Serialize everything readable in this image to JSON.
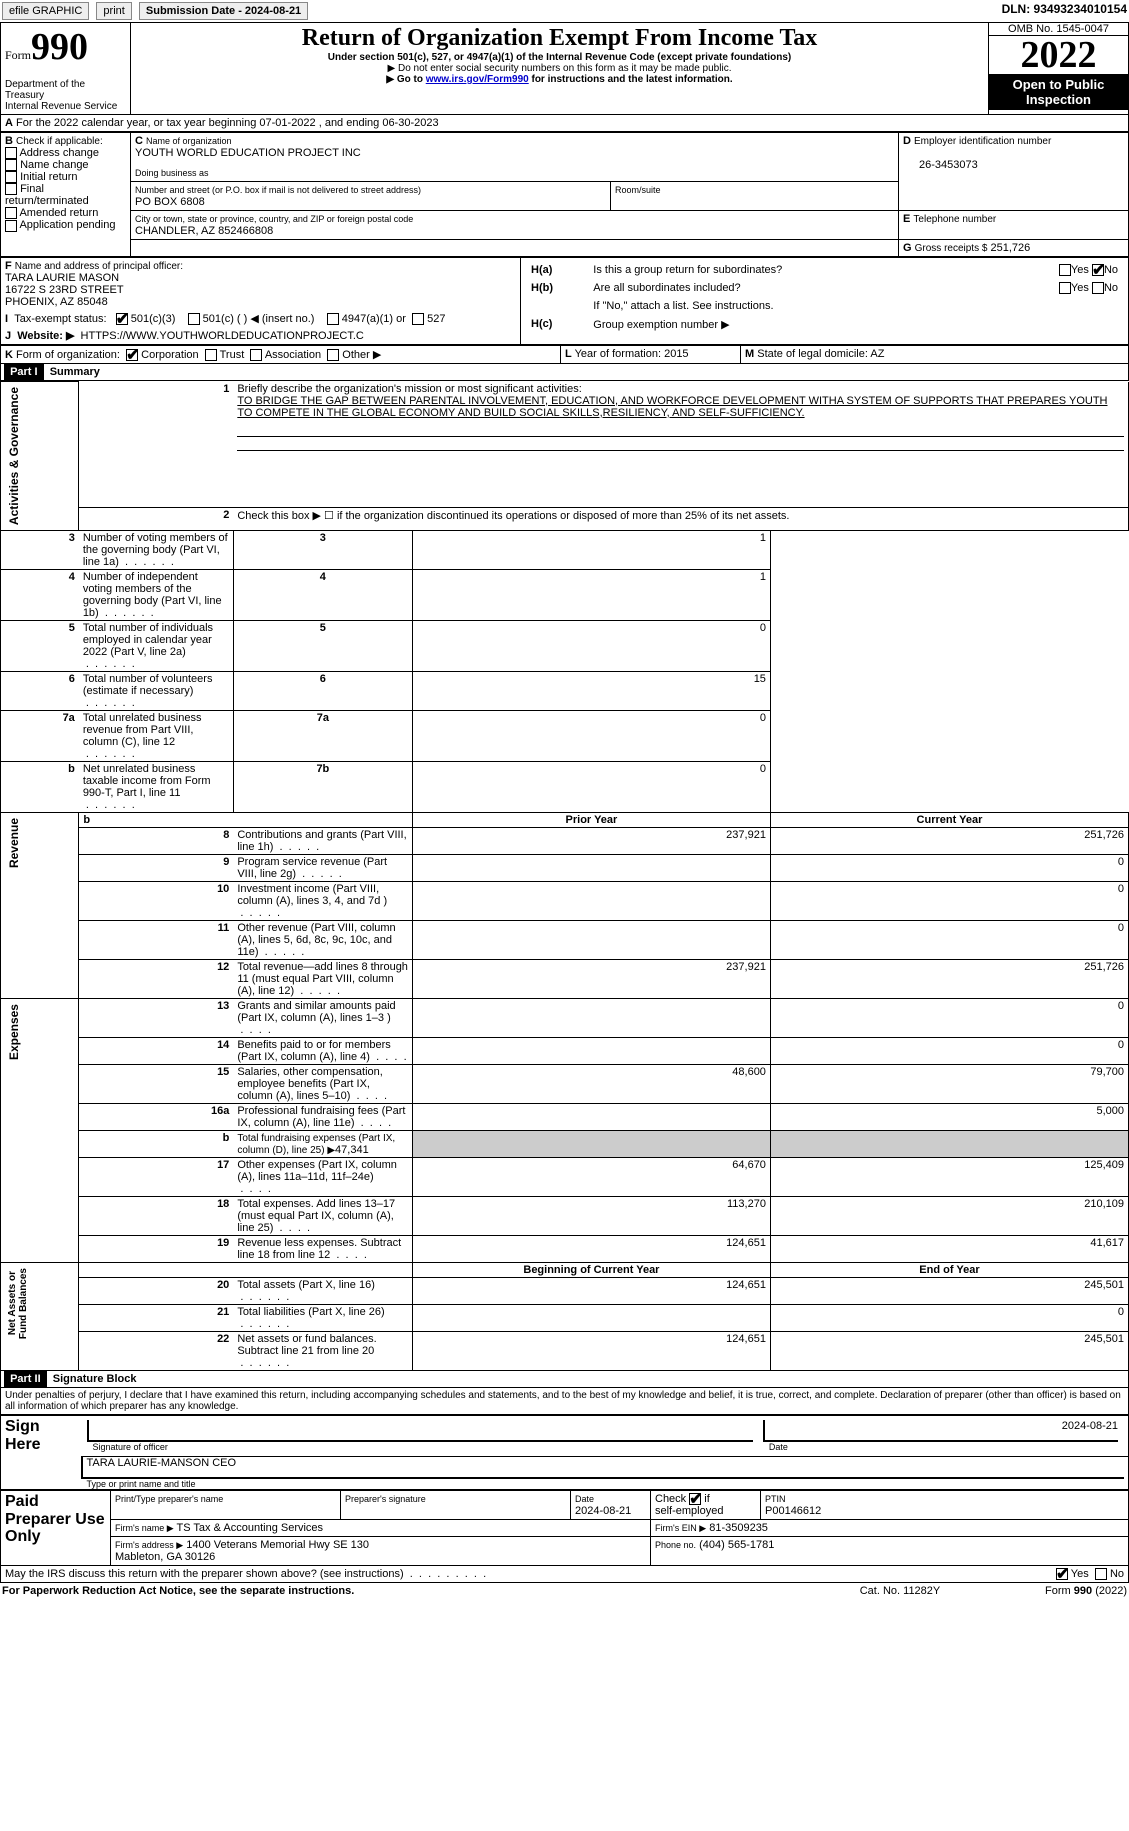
{
  "topbar": {
    "efile": "efile GRAPHIC",
    "print": "print",
    "subdate_label": "Submission Date - 2024-08-21",
    "dln": "DLN: 93493234010154"
  },
  "header": {
    "form_word": "Form",
    "form_num": "990",
    "title": "Return of Organization Exempt From Income Tax",
    "subtitle": "Under section 501(c), 527, or 4947(a)(1) of the Internal Revenue Code (except private foundations)",
    "note1": "▶ Do not enter social security numbers on this form as it may be made public.",
    "note2_prefix": "▶ Go to ",
    "note2_link": "www.irs.gov/Form990",
    "note2_suffix": " for instructions and the latest information.",
    "dept": "Department of the Treasury\nInternal Revenue Service",
    "omb": "OMB No. 1545-0047",
    "year": "2022",
    "open": "Open to Public Inspection"
  },
  "A": {
    "line": "For the 2022 calendar year, or tax year beginning 07-01-2022   , and ending 06-30-2023"
  },
  "B": {
    "label": "Check if applicable:",
    "opts": [
      "Address change",
      "Name change",
      "Initial return",
      "Final return/terminated",
      "Amended return",
      "Application pending"
    ]
  },
  "C": {
    "name_label": "Name of organization",
    "name": "YOUTH WORLD EDUCATION PROJECT INC",
    "dba_label": "Doing business as",
    "addr_label": "Number and street (or P.O. box if mail is not delivered to street address)",
    "room_label": "Room/suite",
    "addr": "PO BOX 6808",
    "city_label": "City or town, state or province, country, and ZIP or foreign postal code",
    "city": "CHANDLER, AZ  852466808"
  },
  "D": {
    "label": "Employer identification number",
    "val": "26-3453073"
  },
  "E": {
    "label": "Telephone number"
  },
  "G": {
    "label": "Gross receipts $",
    "val": "251,726"
  },
  "F": {
    "label": "Name and address of principal officer:",
    "name": "TARA LAURIE MASON",
    "addr1": "16722 S 23RD STREET",
    "addr2": "PHOENIX, AZ  85048"
  },
  "H": {
    "a": "Is this a group return for subordinates?",
    "b": "Are all subordinates included?",
    "note": "If \"No,\" attach a list. See instructions.",
    "c": "Group exemption number ▶",
    "yes": "Yes",
    "no": "No"
  },
  "I": {
    "label": "Tax-exempt status:",
    "o1": "501(c)(3)",
    "o2": "501(c) (   ) ◀ (insert no.)",
    "o3": "4947(a)(1) or",
    "o4": "527"
  },
  "J": {
    "label": "Website: ▶",
    "val": "HTTPS://WWW.YOUTHWORLDEDUCATIONPROJECT.C"
  },
  "K": {
    "label": "Form of organization:",
    "o1": "Corporation",
    "o2": "Trust",
    "o3": "Association",
    "o4": "Other ▶"
  },
  "L": {
    "label": "Year of formation:",
    "val": "2015"
  },
  "M": {
    "label": "State of legal domicile:",
    "val": "AZ"
  },
  "part1": {
    "tag": "Part I",
    "title": "Summary",
    "side_ag": "Activities & Governance",
    "side_rev": "Revenue",
    "side_exp": "Expenses",
    "side_net": "Net Assets or\nFund Balances",
    "l1": "Briefly describe the organization's mission or most significant activities:",
    "l1text": "TO BRIDGE THE GAP BETWEEN PARENTAL INVOLVEMENT, EDUCATION, AND WORKFORCE DEVELOPMENT WITHA SYSTEM OF SUPPORTS THAT PREPARES YOUTH TO COMPETE IN THE GLOBAL ECONOMY AND BUILD SOCIAL SKILLS,RESILIENCY, AND SELF-SUFFICIENCY.",
    "l2": "Check this box ▶ ☐ if the organization discontinued its operations or disposed of more than 25% of its net assets.",
    "rows_ag": [
      {
        "n": "3",
        "t": "Number of voting members of the governing body (Part VI, line 1a)",
        "b": "3",
        "v": "1"
      },
      {
        "n": "4",
        "t": "Number of independent voting members of the governing body (Part VI, line 1b)",
        "b": "4",
        "v": "1"
      },
      {
        "n": "5",
        "t": "Total number of individuals employed in calendar year 2022 (Part V, line 2a)",
        "b": "5",
        "v": "0"
      },
      {
        "n": "6",
        "t": "Total number of volunteers (estimate if necessary)",
        "b": "6",
        "v": "15"
      },
      {
        "n": "7a",
        "t": "Total unrelated business revenue from Part VIII, column (C), line 12",
        "b": "7a",
        "v": "0"
      },
      {
        "n": "b",
        "t": "Net unrelated business taxable income from Form 990-T, Part I, line 11",
        "b": "7b",
        "v": "0"
      }
    ],
    "col_prior": "Prior Year",
    "col_current": "Current Year",
    "rows_rev": [
      {
        "n": "8",
        "t": "Contributions and grants (Part VIII, line 1h)",
        "p": "237,921",
        "c": "251,726"
      },
      {
        "n": "9",
        "t": "Program service revenue (Part VIII, line 2g)",
        "p": "",
        "c": "0"
      },
      {
        "n": "10",
        "t": "Investment income (Part VIII, column (A), lines 3, 4, and 7d )",
        "p": "",
        "c": "0"
      },
      {
        "n": "11",
        "t": "Other revenue (Part VIII, column (A), lines 5, 6d, 8c, 9c, 10c, and 11e)",
        "p": "",
        "c": "0"
      },
      {
        "n": "12",
        "t": "Total revenue—add lines 8 through 11 (must equal Part VIII, column (A), line 12)",
        "p": "237,921",
        "c": "251,726"
      }
    ],
    "rows_exp": [
      {
        "n": "13",
        "t": "Grants and similar amounts paid (Part IX, column (A), lines 1–3 )",
        "p": "",
        "c": "0"
      },
      {
        "n": "14",
        "t": "Benefits paid to or for members (Part IX, column (A), line 4)",
        "p": "",
        "c": "0"
      },
      {
        "n": "15",
        "t": "Salaries, other compensation, employee benefits (Part IX, column (A), lines 5–10)",
        "p": "48,600",
        "c": "79,700"
      },
      {
        "n": "16a",
        "t": "Professional fundraising fees (Part IX, column (A), line 11e)",
        "p": "",
        "c": "5,000"
      }
    ],
    "row16b_label": "Total fundraising expenses (Part IX, column (D), line 25) ▶",
    "row16b_val": "47,341",
    "rows_exp2": [
      {
        "n": "17",
        "t": "Other expenses (Part IX, column (A), lines 11a–11d, 11f–24e)",
        "p": "64,670",
        "c": "125,409"
      },
      {
        "n": "18",
        "t": "Total expenses. Add lines 13–17 (must equal Part IX, column (A), line 25)",
        "p": "113,270",
        "c": "210,109"
      },
      {
        "n": "19",
        "t": "Revenue less expenses. Subtract line 18 from line 12",
        "p": "124,651",
        "c": "41,617"
      }
    ],
    "col_begin": "Beginning of Current Year",
    "col_end": "End of Year",
    "rows_net": [
      {
        "n": "20",
        "t": "Total assets (Part X, line 16)",
        "p": "124,651",
        "c": "245,501"
      },
      {
        "n": "21",
        "t": "Total liabilities (Part X, line 26)",
        "p": "",
        "c": "0"
      },
      {
        "n": "22",
        "t": "Net assets or fund balances. Subtract line 21 from line 20",
        "p": "124,651",
        "c": "245,501"
      }
    ]
  },
  "part2": {
    "tag": "Part II",
    "title": "Signature Block",
    "decl": "Under penalties of perjury, I declare that I have examined this return, including accompanying schedules and statements, and to the best of my knowledge and belief, it is true, correct, and complete. Declaration of preparer (other than officer) is based on all information of which preparer has any knowledge.",
    "sign": "Sign Here",
    "sig_label": "Signature of officer",
    "date_label": "Date",
    "date_val": "2024-08-21",
    "name_label": "Type or print name and title",
    "name_val": "TARA LAURIE-MANSON  CEO",
    "paid": "Paid Preparer Use Only",
    "pp_name_label": "Print/Type preparer's name",
    "pp_sig_label": "Preparer's signature",
    "pp_date_label": "Date",
    "pp_date_val": "2024-08-21",
    "pp_check_label": "Check ☑ if self-employed",
    "pp_ptin_label": "PTIN",
    "pp_ptin_val": "P00146612",
    "firm_name_label": "Firm's name    ▶",
    "firm_name": "TS Tax & Accounting Services",
    "firm_ein_label": "Firm's EIN ▶",
    "firm_ein": "81-3509235",
    "firm_addr_label": "Firm's address ▶",
    "firm_addr": "1400 Veterans Memorial Hwy SE 130\nMableton, GA  30126",
    "phone_label": "Phone no.",
    "phone": "(404) 565-1781",
    "discuss": "May the IRS discuss this return with the preparer shown above? (see instructions)",
    "discuss_yes": "Yes",
    "discuss_no": "No"
  },
  "footer": {
    "left": "For Paperwork Reduction Act Notice, see the separate instructions.",
    "mid": "Cat. No. 11282Y",
    "right": "Form 990 (2022)"
  }
}
